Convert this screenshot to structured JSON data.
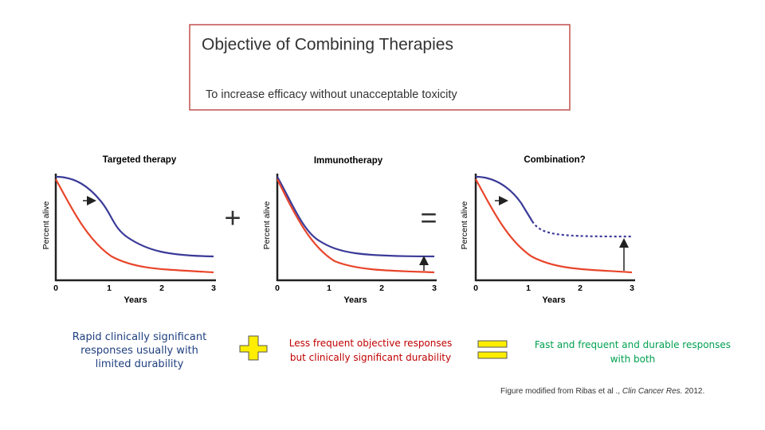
{
  "header": {
    "title": "Objective of Combining Therapies",
    "subtitle": "To increase efficacy without unacceptable toxicity"
  },
  "panels": [
    {
      "title": "Targeted therapy",
      "y_label": "Percent alive",
      "x_label": "Years",
      "x_ticks": [
        "0",
        "1",
        "2",
        "3"
      ],
      "caption": "Rapid clinically significant responses usually with limited durability"
    },
    {
      "title": "Immunotherapy",
      "y_label": "Percent alive",
      "x_label": "Years",
      "x_ticks": [
        "0",
        "1",
        "2",
        "3"
      ],
      "caption": "Less frequent objective responses but clinically significant durability"
    },
    {
      "title": "Combination?",
      "y_label": "Percent alive",
      "x_label": "Years",
      "x_ticks": [
        "0",
        "1",
        "2",
        "3"
      ],
      "caption": "Fast and frequent and durable responses with both"
    }
  ],
  "operators": [
    "+",
    "="
  ],
  "source": {
    "text": "Figure modified from Ribas et al ., ",
    "journal": "Clin Cancer Res.",
    "year": " 2012."
  }
}
